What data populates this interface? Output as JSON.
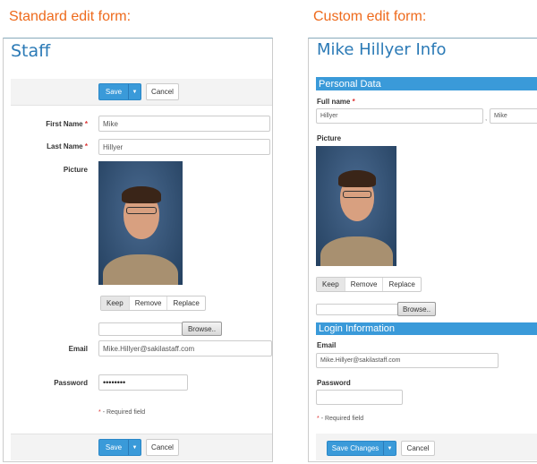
{
  "captions": {
    "standard": "Standard edit form:",
    "custom": "Custom edit form:"
  },
  "standard": {
    "title": "Staff",
    "save": "Save",
    "cancel": "Cancel",
    "first_name_label": "First Name",
    "first_name": "Mike",
    "last_name_label": "Last Name",
    "last_name": "Hillyer",
    "picture_label": "Picture",
    "picture_options": [
      "Keep",
      "Remove",
      "Replace"
    ],
    "browse": "Browse..",
    "email_label": "Email",
    "email": "Mike.Hillyer@sakilastaff.com",
    "password_label": "Password",
    "password": "••••••••",
    "required_note": "- Required field"
  },
  "custom": {
    "title": "Mike Hillyer Info",
    "section_personal": "Personal Data",
    "full_name_label": "Full name",
    "last_name": "Hillyer",
    "separator": ",",
    "first_name": "Mike",
    "picture_label": "Picture",
    "picture_options": [
      "Keep",
      "Remove",
      "Replace"
    ],
    "browse": "Browse..",
    "section_login": "Login Information",
    "email_label": "Email",
    "email": "Mike.Hillyer@sakilastaff.com",
    "password_label": "Password",
    "password": "",
    "required_note": "- Required field",
    "save": "Save Changes",
    "cancel": "Cancel"
  },
  "required_mark": "*",
  "colors": {
    "accent": "#3a9ad9",
    "caption": "#ee6a1c",
    "title": "#2b7ab6"
  }
}
